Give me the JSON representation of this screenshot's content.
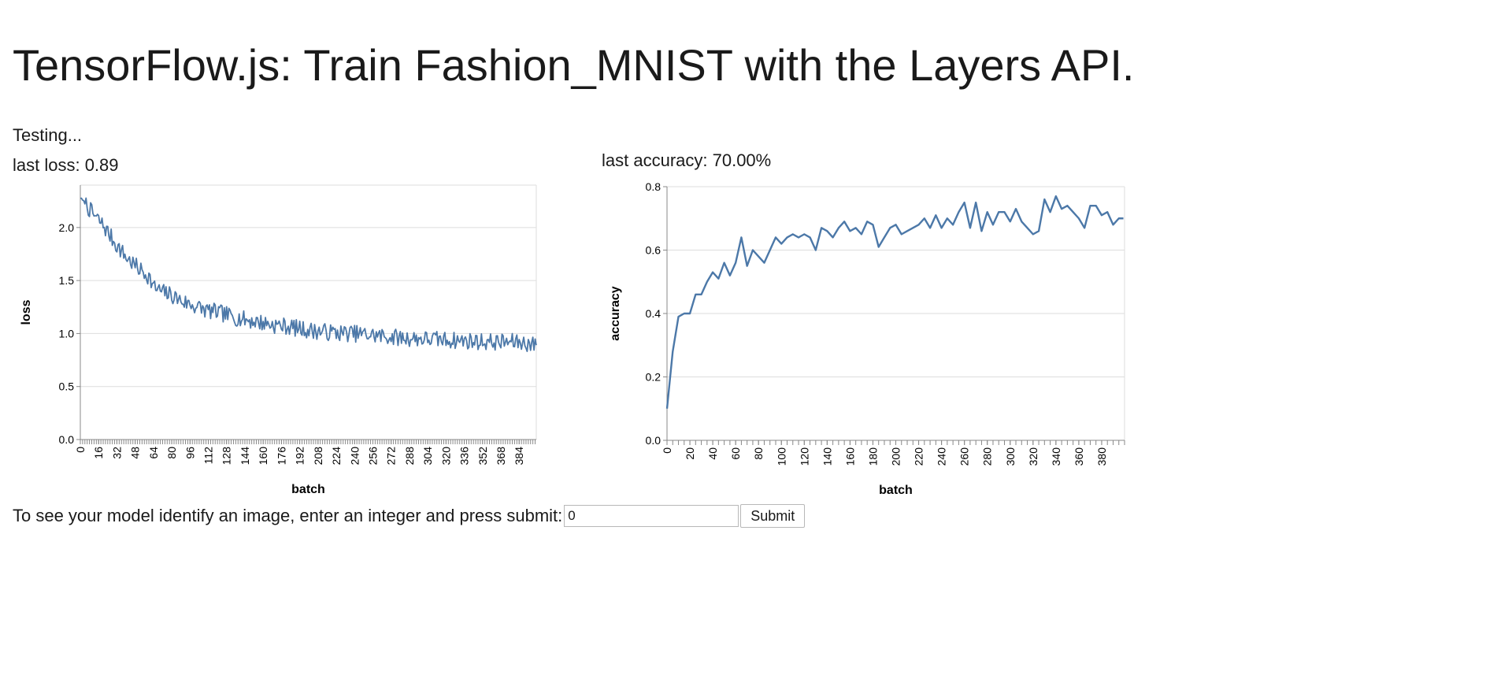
{
  "page": {
    "title": "TensorFlow.js: Train Fashion_MNIST with the Layers API.",
    "status": "Testing...",
    "last_loss": "last loss: 0.89",
    "last_accuracy": "last accuracy: 70.00%"
  },
  "form": {
    "prompt": "To see your model identify an image, enter an integer and press submit:",
    "value": "0",
    "submit_label": "Submit"
  },
  "colors": {
    "line": "#4c78a8",
    "grid": "#dddddd",
    "axis": "#888888",
    "text": "#000000"
  },
  "chart_data": [
    {
      "type": "line",
      "xlabel": "batch",
      "ylabel": "loss",
      "ylim": [
        0,
        2.4
      ],
      "yticks": [
        0,
        0.5,
        1.0,
        1.5,
        2.0
      ],
      "ytick_labels": [
        "0.0",
        "0.5",
        "1.0",
        "1.5",
        "2.0"
      ],
      "xlim": [
        0,
        399
      ],
      "xticks": [
        0,
        16,
        32,
        48,
        64,
        80,
        96,
        112,
        128,
        144,
        160,
        176,
        192,
        208,
        224,
        240,
        256,
        272,
        288,
        304,
        320,
        336,
        352,
        368,
        384
      ],
      "grid": true,
      "anchors": {
        "x": [
          0,
          5,
          10,
          20,
          30,
          40,
          50,
          60,
          64,
          70,
          80,
          90,
          100,
          110,
          120,
          130,
          140,
          150,
          160,
          170,
          180,
          190,
          200,
          220,
          240,
          260,
          280,
          300,
          320,
          340,
          360,
          380,
          390,
          399
        ],
        "y": [
          2.28,
          2.22,
          2.14,
          2.02,
          1.86,
          1.72,
          1.62,
          1.54,
          1.44,
          1.4,
          1.36,
          1.3,
          1.26,
          1.22,
          1.2,
          1.17,
          1.14,
          1.12,
          1.1,
          1.08,
          1.07,
          1.05,
          1.03,
          1.01,
          1.0,
          0.98,
          0.96,
          0.95,
          0.94,
          0.93,
          0.92,
          0.92,
          0.91,
          0.89
        ]
      },
      "noise_amplitude": 0.08,
      "n_points": 400
    },
    {
      "type": "line",
      "xlabel": "batch",
      "ylabel": "accuracy",
      "ylim": [
        0,
        0.8
      ],
      "yticks": [
        0,
        0.2,
        0.4,
        0.6,
        0.8
      ],
      "ytick_labels": [
        "0.0",
        "0.2",
        "0.4",
        "0.6",
        "0.8"
      ],
      "xlim": [
        0,
        400
      ],
      "xticks": [
        0,
        20,
        40,
        60,
        80,
        100,
        120,
        140,
        160,
        180,
        200,
        220,
        240,
        260,
        280,
        300,
        320,
        340,
        360,
        380
      ],
      "minor_xticks_every": 5,
      "grid": true,
      "x": [
        0,
        5,
        10,
        15,
        20,
        25,
        30,
        35,
        40,
        45,
        50,
        55,
        60,
        65,
        70,
        75,
        80,
        85,
        90,
        95,
        100,
        105,
        110,
        115,
        120,
        125,
        130,
        135,
        140,
        145,
        150,
        155,
        160,
        165,
        170,
        175,
        180,
        185,
        190,
        195,
        200,
        205,
        210,
        215,
        220,
        225,
        230,
        235,
        240,
        245,
        250,
        255,
        260,
        265,
        270,
        275,
        280,
        285,
        290,
        295,
        300,
        305,
        310,
        315,
        320,
        325,
        330,
        335,
        340,
        345,
        350,
        355,
        360,
        365,
        370,
        375,
        380,
        385,
        390,
        395,
        399
      ],
      "y": [
        0.1,
        0.28,
        0.39,
        0.4,
        0.4,
        0.46,
        0.46,
        0.5,
        0.53,
        0.51,
        0.56,
        0.52,
        0.56,
        0.64,
        0.55,
        0.6,
        0.58,
        0.56,
        0.6,
        0.64,
        0.62,
        0.64,
        0.65,
        0.64,
        0.65,
        0.64,
        0.6,
        0.67,
        0.66,
        0.64,
        0.67,
        0.69,
        0.66,
        0.67,
        0.65,
        0.69,
        0.68,
        0.61,
        0.64,
        0.67,
        0.68,
        0.65,
        0.66,
        0.67,
        0.68,
        0.7,
        0.67,
        0.71,
        0.67,
        0.7,
        0.68,
        0.72,
        0.75,
        0.67,
        0.75,
        0.66,
        0.72,
        0.68,
        0.72,
        0.72,
        0.69,
        0.73,
        0.69,
        0.67,
        0.65,
        0.66,
        0.76,
        0.72,
        0.77,
        0.73,
        0.74,
        0.72,
        0.7,
        0.67,
        0.74,
        0.74,
        0.71,
        0.72,
        0.68,
        0.7,
        0.7
      ]
    }
  ]
}
